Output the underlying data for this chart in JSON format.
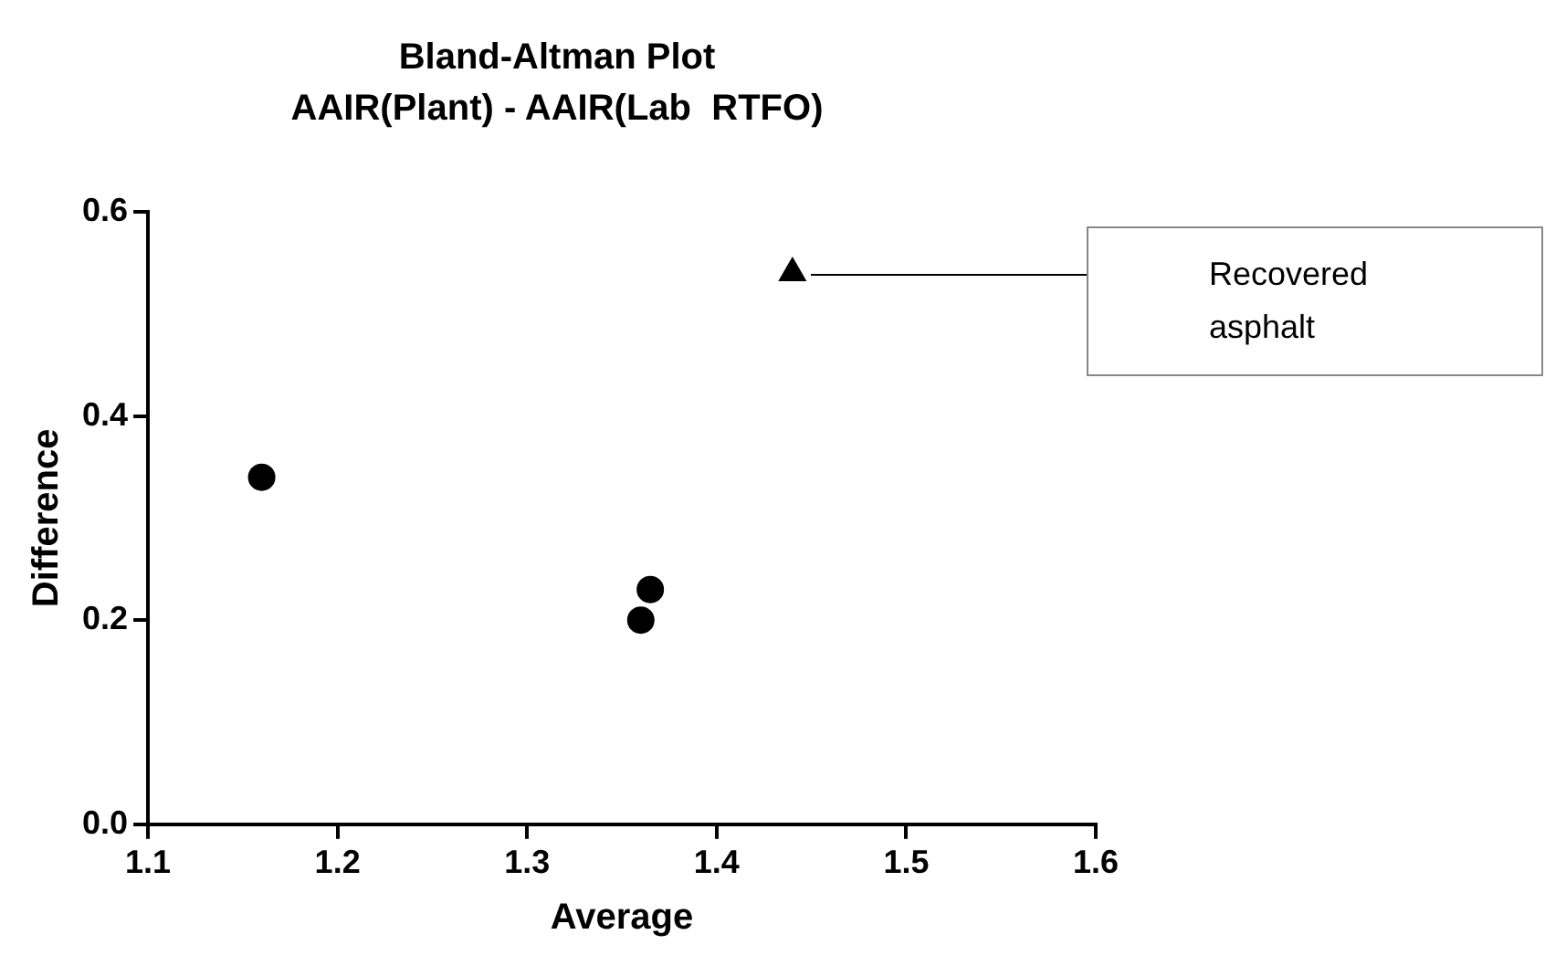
{
  "chart_data": {
    "type": "scatter",
    "title": "Bland-Altman Plot",
    "subtitle": "AAIR(Plant) - AAIR(Lab  RTFO)",
    "xlabel": "Average",
    "ylabel": "Difference",
    "series": [
      {
        "color": "#000000",
        "marker": "circle",
        "x": [
          1.16,
          1.36,
          1.365
        ],
        "values": [
          0.34,
          0.2,
          0.23
        ]
      },
      {
        "color": "#000000",
        "marker": "triangle",
        "x": [
          1.44
        ],
        "values": [
          0.54
        ]
      }
    ],
    "annotations": [
      "Recovered asphalt"
    ],
    "xlim": [
      1.1,
      1.6
    ],
    "xticks": [
      1.1,
      1.2,
      1.3,
      1.4,
      1.5,
      1.6
    ],
    "ylim": [
      0,
      0.6
    ],
    "yticks": [
      {
        "value": 0,
        "label": "0.0"
      },
      {
        "value": 0.2,
        "label": "0.2"
      },
      {
        "value": 0.4,
        "label": "0.4"
      },
      {
        "value": 0.6,
        "label": "0.6"
      }
    ],
    "grid": false,
    "legend": false
  }
}
